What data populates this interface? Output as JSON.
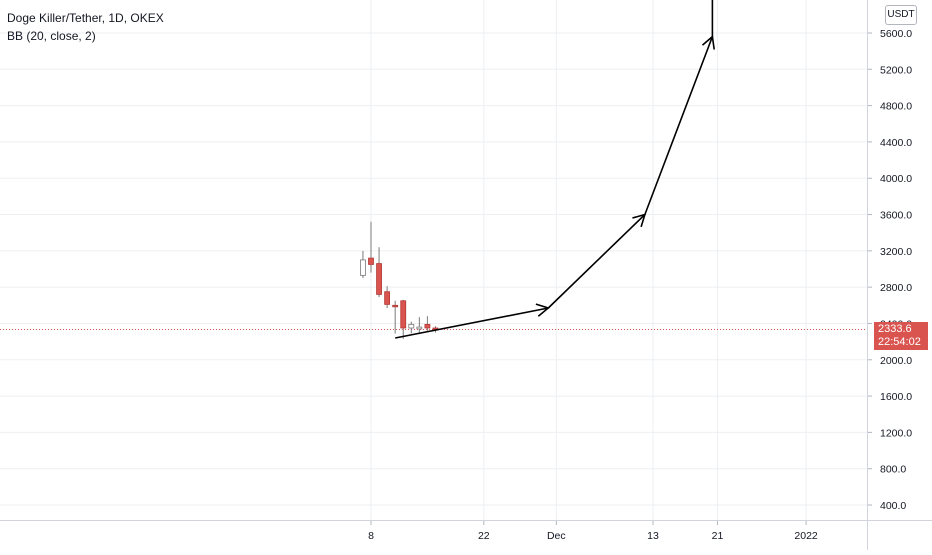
{
  "header": {
    "symbol_title": "Doge Killer/Tether, 1D, OKEX",
    "indicator": "BB (20, close, 2)"
  },
  "currency_button": "USDT",
  "last_price": {
    "value": "2333.6",
    "countdown": "22:54:02",
    "color": "#d9534f"
  },
  "colors": {
    "up": "#ffffff",
    "down": "#d9534f",
    "wick": "#7a7a7a",
    "grid": "#eeeff2",
    "arrow": "#000000"
  },
  "chart_data": {
    "type": "candlestick",
    "title": "",
    "xlabel": "",
    "ylabel": "",
    "ylim": [
      250,
      5950
    ],
    "yticks": [
      "400.0",
      "800.0",
      "1200.0",
      "1600.0",
      "2000.0",
      "2400.0",
      "2800.0",
      "3200.0",
      "3600.0",
      "4000.0",
      "4400.0",
      "4800.0",
      "5200.0",
      "5600.0"
    ],
    "xticks": [
      "8",
      "22",
      "Dec",
      "13",
      "21",
      "2022"
    ],
    "candles": [
      {
        "date": "Nov 7",
        "open": 2930,
        "high": 3200,
        "low": 2900,
        "close": 3100
      },
      {
        "date": "Nov 8",
        "open": 3120,
        "high": 3520,
        "low": 2960,
        "close": 3050
      },
      {
        "date": "Nov 9",
        "open": 3060,
        "high": 3240,
        "low": 2690,
        "close": 2720
      },
      {
        "date": "Nov 10",
        "open": 2750,
        "high": 2810,
        "low": 2570,
        "close": 2610
      },
      {
        "date": "Nov 11",
        "open": 2600,
        "high": 2650,
        "low": 2290,
        "close": 2590
      },
      {
        "date": "Nov 12",
        "open": 2650,
        "high": 2660,
        "low": 2230,
        "close": 2350
      },
      {
        "date": "Nov 13",
        "open": 2350,
        "high": 2420,
        "low": 2290,
        "close": 2390
      },
      {
        "date": "Nov 14",
        "open": 2340,
        "high": 2470,
        "low": 2300,
        "close": 2360
      },
      {
        "date": "Nov 15",
        "open": 2390,
        "high": 2480,
        "low": 2320,
        "close": 2350
      },
      {
        "date": "Nov 16",
        "open": 2350,
        "high": 2370,
        "low": 2300,
        "close": 2334
      }
    ],
    "drawing_path": [
      {
        "date": "Nov 11",
        "price": 2240
      },
      {
        "date": "Nov 30",
        "price": 2570
      },
      {
        "date": "Dec 12",
        "price": 3600
      },
      {
        "date": "Dec 20",
        "price": 5560
      },
      {
        "date": "Dec 20",
        "price": 6000
      }
    ]
  }
}
